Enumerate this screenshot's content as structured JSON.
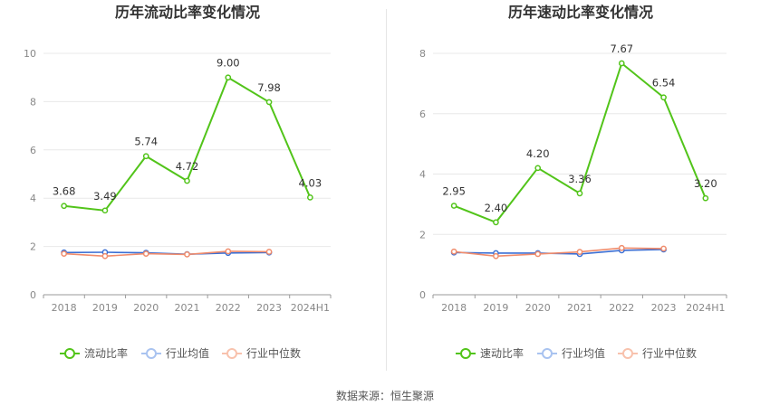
{
  "source_text": "数据来源：恒生聚源",
  "colors": {
    "company": "#52c41a",
    "industry_avg": "#3b6fd4",
    "industry_median": "#f08c6c",
    "legend_avg": "#a9c3f0",
    "legend_median": "#f8c2ad"
  },
  "chart_data": [
    {
      "type": "line",
      "title": "历年流动比率变化情况",
      "categories": [
        "2018",
        "2019",
        "2020",
        "2021",
        "2022",
        "2023",
        "2024H1"
      ],
      "ylim": [
        0,
        10
      ],
      "yticks": [
        "0",
        "2",
        "4",
        "6",
        "8",
        "10"
      ],
      "grid": true,
      "legend_position": "bottom",
      "series": [
        {
          "name": "流动比率",
          "values": [
            3.68,
            3.49,
            5.74,
            4.72,
            9.0,
            7.98,
            4.03
          ],
          "labels": [
            "3.68",
            "3.49",
            "5.74",
            "4.72",
            "9.00",
            "7.98",
            "4.03"
          ]
        },
        {
          "name": "行业均值",
          "values": [
            1.75,
            1.76,
            1.74,
            1.68,
            1.73,
            1.75,
            null
          ]
        },
        {
          "name": "行业中位数",
          "values": [
            1.7,
            1.6,
            1.7,
            1.67,
            1.8,
            1.78,
            null
          ]
        }
      ]
    },
    {
      "type": "line",
      "title": "历年速动比率变化情况",
      "categories": [
        "2018",
        "2019",
        "2020",
        "2021",
        "2022",
        "2023",
        "2024H1"
      ],
      "ylim": [
        0,
        8
      ],
      "yticks": [
        "0",
        "2",
        "4",
        "6",
        "8"
      ],
      "grid": true,
      "legend_position": "bottom",
      "series": [
        {
          "name": "速动比率",
          "values": [
            2.95,
            2.4,
            4.2,
            3.36,
            7.67,
            6.54,
            3.2
          ],
          "labels": [
            "2.95",
            "2.40",
            "4.20",
            "3.36",
            "7.67",
            "6.54",
            "3.20"
          ]
        },
        {
          "name": "行业均值",
          "values": [
            1.4,
            1.38,
            1.38,
            1.35,
            1.47,
            1.5,
            null
          ]
        },
        {
          "name": "行业中位数",
          "values": [
            1.43,
            1.28,
            1.35,
            1.42,
            1.55,
            1.53,
            null
          ]
        }
      ]
    }
  ]
}
